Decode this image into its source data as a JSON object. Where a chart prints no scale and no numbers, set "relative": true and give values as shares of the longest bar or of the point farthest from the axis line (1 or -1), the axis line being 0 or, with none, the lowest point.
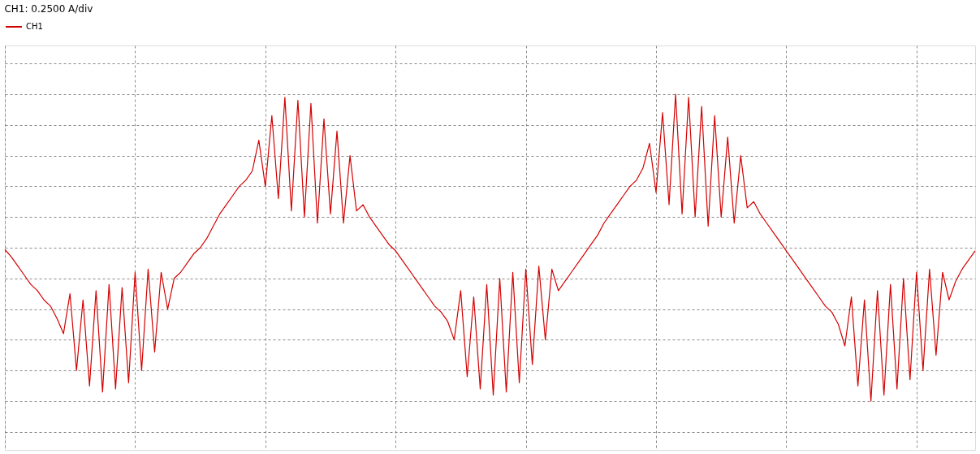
{
  "chart_data": {
    "type": "line",
    "title": "CH1: 0.2500 A/div",
    "relative": true,
    "grid": true,
    "legend": "top left",
    "marker": "none",
    "line_style": "solid",
    "categories": [
      null,
      null,
      null,
      null,
      null,
      null,
      null,
      null,
      null,
      null,
      null,
      null,
      null,
      null,
      null,
      null,
      null,
      null,
      null,
      null,
      null,
      null,
      null,
      null,
      null,
      null,
      null,
      null,
      null,
      null,
      null,
      null,
      null,
      null,
      null,
      null,
      null,
      null,
      null,
      null,
      null,
      null,
      null,
      null,
      null,
      null,
      null,
      null,
      null,
      null,
      null,
      null,
      null,
      null,
      null,
      null,
      null,
      null,
      null,
      null,
      null,
      null,
      null,
      null,
      null,
      null,
      null,
      null,
      null,
      null,
      null,
      null,
      null,
      null,
      null,
      null,
      null,
      null,
      null,
      null,
      null,
      null,
      null,
      null,
      null,
      null,
      null,
      null,
      null,
      null,
      null,
      null,
      null,
      null,
      null,
      null,
      null,
      null,
      null,
      null,
      null,
      null,
      null,
      null,
      null,
      null,
      null,
      null,
      null,
      null,
      null,
      null,
      null,
      null,
      null,
      null,
      null,
      null,
      null,
      null,
      null,
      null,
      null,
      null,
      null,
      null,
      null,
      null,
      null,
      null,
      null,
      null,
      null,
      null,
      null,
      null,
      null,
      null,
      null,
      null,
      null,
      null,
      null,
      null,
      null,
      null,
      null,
      null,
      null,
      null
    ],
    "series": [
      {
        "name": "CH1",
        "color": "#d40000",
        "values": [
          0.494,
          0.47,
          0.44,
          0.41,
          0.38,
          0.36,
          0.33,
          0.31,
          0.27,
          0.22,
          0.35,
          0.1,
          0.33,
          0.05,
          0.36,
          0.03,
          0.38,
          0.04,
          0.37,
          0.06,
          0.42,
          0.1,
          0.43,
          0.16,
          0.42,
          0.3,
          0.4,
          0.42,
          0.45,
          0.48,
          0.5,
          0.53,
          0.57,
          0.61,
          0.64,
          0.67,
          0.7,
          0.72,
          0.75,
          0.85,
          0.7,
          0.93,
          0.66,
          0.99,
          0.62,
          0.98,
          0.6,
          0.97,
          0.58,
          0.92,
          0.61,
          0.88,
          0.58,
          0.8,
          0.62,
          0.64,
          0.6,
          0.57,
          0.54,
          0.51,
          0.49,
          0.46,
          0.43,
          0.4,
          0.37,
          0.34,
          0.31,
          0.29,
          0.26,
          0.2,
          0.36,
          0.08,
          0.34,
          0.04,
          0.38,
          0.02,
          0.4,
          0.03,
          0.42,
          0.06,
          0.43,
          0.12,
          0.44,
          0.2,
          0.43,
          0.36,
          0.39,
          0.42,
          0.45,
          0.48,
          0.51,
          0.54,
          0.58,
          0.61,
          0.64,
          0.67,
          0.7,
          0.72,
          0.76,
          0.84,
          0.68,
          0.94,
          0.64,
          1.0,
          0.61,
          0.99,
          0.6,
          0.96,
          0.57,
          0.93,
          0.6,
          0.86,
          0.58,
          0.8,
          0.63,
          0.65,
          0.61,
          0.58,
          0.55,
          0.52,
          0.49,
          0.46,
          0.43,
          0.4,
          0.37,
          0.34,
          0.31,
          0.29,
          0.25,
          0.18,
          0.34,
          0.05,
          0.33,
          0.0,
          0.36,
          0.02,
          0.38,
          0.04,
          0.4,
          0.07,
          0.42,
          0.1,
          0.43,
          0.15,
          0.42,
          0.33,
          0.39,
          0.43,
          0.46,
          0.49
        ]
      }
    ]
  }
}
